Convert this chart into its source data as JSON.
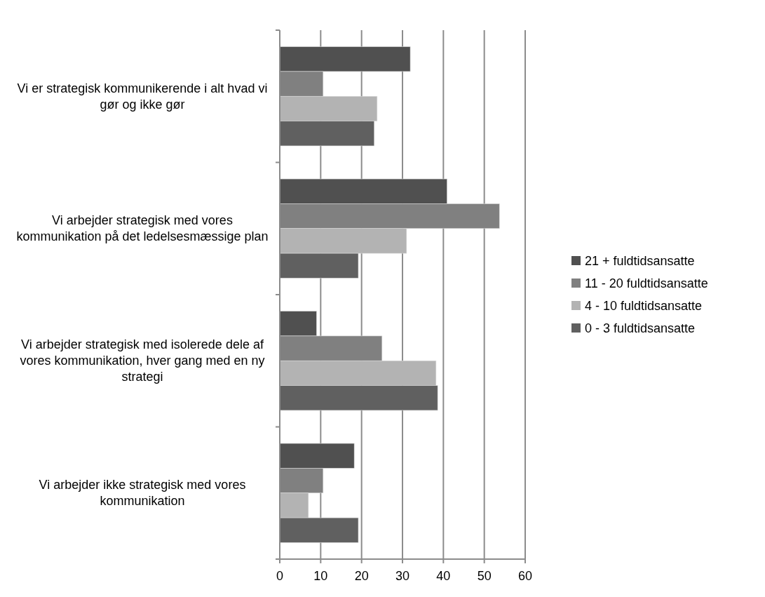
{
  "chart_data": {
    "type": "bar",
    "orientation": "horizontal",
    "categories": [
      "Vi er strategisk kommunikerende i alt hvad vi gør og ikke gør",
      "Vi arbejder strategisk med vores kommunikation på det ledelsesmæssige plan",
      "Vi arbejder strategisk med isolerede dele af vores kommunikation, hver gang med en ny strategi",
      "Vi arbejder ikke strategisk med vores kommunikation"
    ],
    "series": [
      {
        "name": "21 + fuldtidsansatte",
        "color": "#505050",
        "values": [
          31.9,
          40.9,
          9.0,
          18.2
        ]
      },
      {
        "name": "11 - 20 fuldtidsansatte",
        "color": "#808080",
        "values": [
          10.6,
          53.7,
          25.0,
          10.6
        ]
      },
      {
        "name": "4 - 10 fuldtidsansatte",
        "color": "#b3b3b3",
        "values": [
          23.8,
          31.0,
          38.2,
          7.0
        ]
      },
      {
        "name": "0 - 3 fuldtidsansatte",
        "color": "#606060",
        "values": [
          23.1,
          19.2,
          38.6,
          19.2
        ]
      }
    ],
    "xlim": [
      0,
      60
    ],
    "xticks": [
      0,
      10,
      20,
      30,
      40,
      50,
      60
    ],
    "grid": "x",
    "legend": "right"
  }
}
